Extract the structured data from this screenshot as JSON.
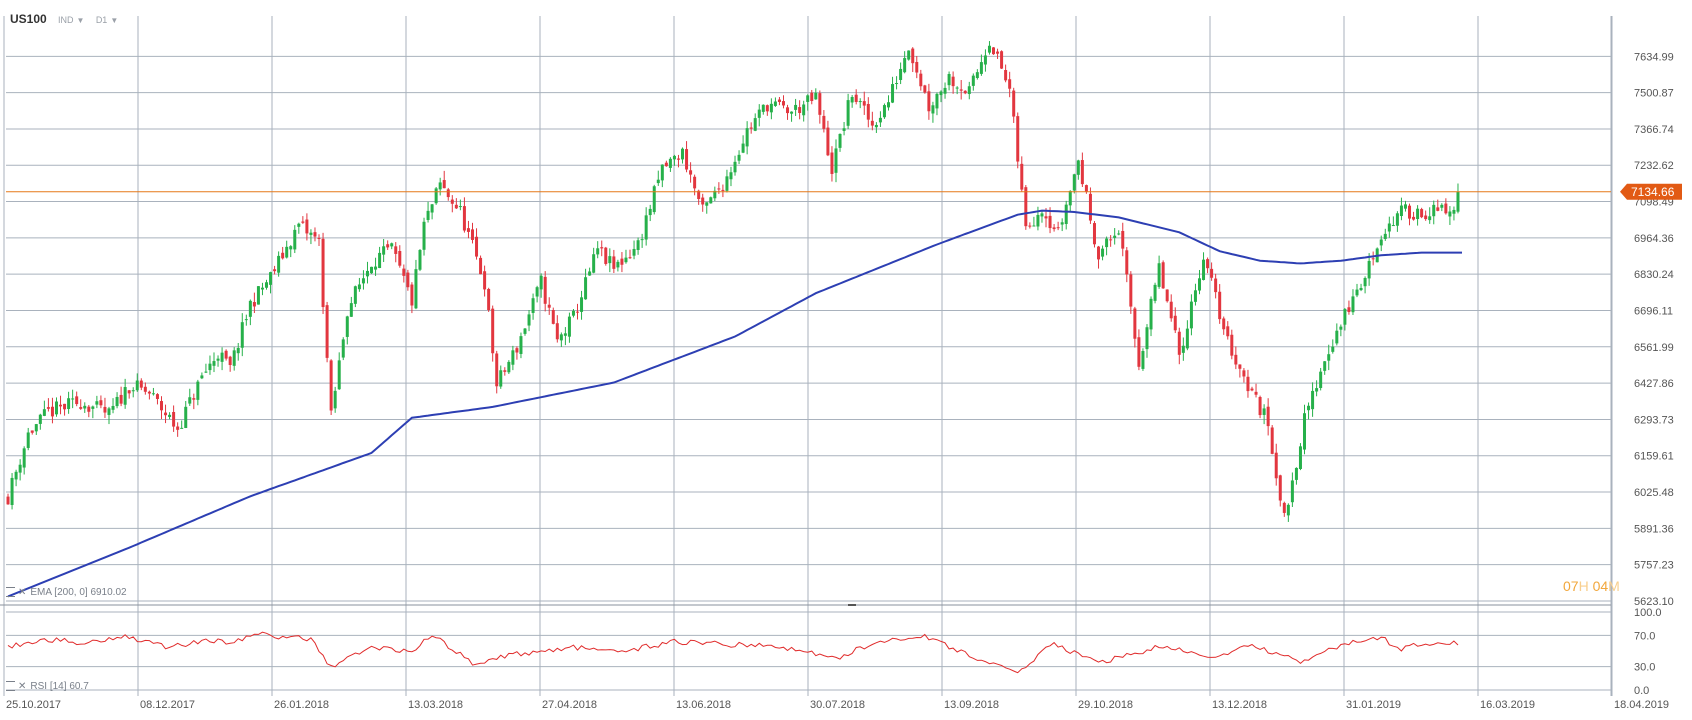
{
  "header": {
    "symbol": "US100",
    "type": "IND",
    "timeframe": "D1"
  },
  "timer": {
    "h": "07",
    "h_unit": "H",
    "m": "04",
    "m_unit": "M"
  },
  "indicators": {
    "ema_label": "EMA",
    "ema_params": "[200, 0]",
    "ema_value": "6910.02",
    "rsi_label": "RSI",
    "rsi_params": "[14]",
    "rsi_value": "60.7"
  },
  "colors": {
    "up": "#26b04a",
    "down": "#e2363f",
    "ema": "#2d3fb3",
    "rsi": "#e02b2b",
    "price_line": "#e67819",
    "price_badge": "#e25a14",
    "grid": "#a9b2bd"
  },
  "chart_data": [
    {
      "type": "candlestick",
      "series": [
        {
          "name": "US100"
        },
        {
          "name": "EMA [200, 0]"
        }
      ],
      "x_tick_labels": [
        "25.10.2017",
        "08.12.2017",
        "26.01.2018",
        "13.03.2018",
        "27.04.2018",
        "13.06.2018",
        "30.07.2018",
        "13.09.2018",
        "29.10.2018",
        "13.12.2018",
        "31.01.2019",
        "16.03.2019",
        "18.04.2019"
      ],
      "y_tick_labels": [
        "7634.99",
        "7500.87",
        "7366.74",
        "7232.62",
        "7098.49",
        "6964.36",
        "6830.24",
        "6696.11",
        "6561.99",
        "6427.86",
        "6293.73",
        "6159.61",
        "6025.48",
        "5891.36",
        "5757.23",
        "5623.10"
      ],
      "ylim": [
        5623.1,
        7769.12
      ],
      "current_price": 7134.66,
      "grid": true,
      "ohlc_waypoints": {
        "bar_index": [
          0,
          5,
          10,
          18,
          25,
          30,
          35,
          42,
          48,
          52,
          55,
          60,
          65,
          72,
          77,
          80,
          84,
          90,
          95,
          100,
          103,
          107,
          112,
          118,
          121,
          126,
          132,
          136,
          140,
          146,
          150,
          156,
          162,
          167,
          172,
          178,
          183,
          188,
          194,
          200,
          204,
          209,
          214,
          218,
          223,
          228,
          233,
          238,
          243,
          248,
          252,
          256,
          260,
          265,
          270,
          275,
          280,
          285,
          290,
          296,
          302,
          307,
          312,
          316,
          321,
          326,
          332,
          336,
          340,
          345
        ],
        "close": [
          6010,
          6240,
          6320,
          6360,
          6310,
          6420,
          6390,
          6260,
          6450,
          6540,
          6480,
          6720,
          6820,
          7010,
          6950,
          6300,
          6700,
          6880,
          6920,
          6730,
          7010,
          7160,
          7060,
          6800,
          6420,
          6560,
          6800,
          6580,
          6670,
          6920,
          6850,
          6940,
          7220,
          7280,
          7060,
          7190,
          7360,
          7460,
          7430,
          7480,
          7220,
          7500,
          7380,
          7470,
          7680,
          7450,
          7560,
          7500,
          7700,
          7510,
          7000,
          7080,
          6980,
          7250,
          6900,
          7000,
          6500,
          6850,
          6530,
          6900,
          6580,
          6420,
          6280,
          5920,
          6290,
          6520,
          6710,
          6820,
          6980,
          7060
        ]
      },
      "ema_waypoints": {
        "bar_index": [
          0,
          30,
          60,
          90,
          100,
          120,
          150,
          180,
          200,
          230,
          250,
          256,
          264,
          275,
          290,
          300,
          310,
          320,
          330,
          340,
          350
        ],
        "value": [
          5640,
          5820,
          6010,
          6170,
          6300,
          6340,
          6430,
          6600,
          6760,
          6940,
          7050,
          7065,
          7060,
          7040,
          6985,
          6915,
          6880,
          6870,
          6880,
          6900,
          6910
        ]
      }
    },
    {
      "type": "line",
      "series": [
        {
          "name": "RSI [14]"
        }
      ],
      "y_tick_labels": [
        "100.0",
        "70.0",
        "30.0",
        "0.0"
      ],
      "ylim": [
        0,
        100
      ],
      "rsi_waypoints": {
        "bar_index": [
          0,
          10,
          20,
          28,
          40,
          50,
          55,
          62,
          68,
          75,
          80,
          90,
          100,
          105,
          115,
          125,
          140,
          150,
          165,
          180,
          192,
          205,
          215,
          226,
          238,
          250,
          258,
          270,
          285,
          300,
          308,
          320,
          330,
          340,
          345,
          350
        ],
        "value": [
          55,
          65,
          60,
          70,
          55,
          65,
          60,
          72,
          68,
          65,
          30,
          55,
          50,
          70,
          35,
          45,
          55,
          48,
          62,
          58,
          55,
          40,
          62,
          70,
          45,
          20,
          60,
          35,
          55,
          42,
          58,
          35,
          58,
          67,
          52,
          60.7
        ]
      }
    }
  ]
}
